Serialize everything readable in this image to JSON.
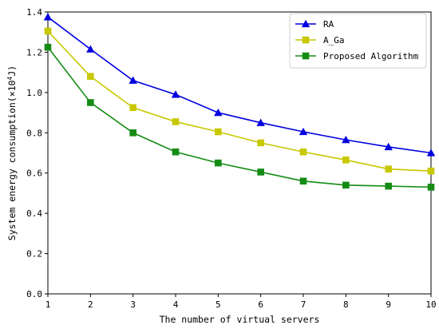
{
  "chart_data": {
    "type": "line",
    "x": [
      1,
      2,
      3,
      4,
      5,
      6,
      7,
      8,
      9,
      10
    ],
    "xlabel": "The number of virtual servers",
    "ylabel_prefix": "System energy consumption(×10",
    "ylabel_exp": "4",
    "ylabel_suffix": "J)",
    "xlim": [
      1,
      10
    ],
    "ylim": [
      0,
      1.4
    ],
    "x_ticks": [
      1,
      2,
      3,
      4,
      5,
      6,
      7,
      8,
      9,
      10
    ],
    "y_ticks": [
      0.0,
      0.2,
      0.4,
      0.6,
      0.8,
      1.0,
      1.2,
      1.4
    ],
    "grid": false,
    "legend_position": "top-right",
    "series": [
      {
        "name": "RA",
        "color": "#0000e0",
        "marker": "triangle",
        "values": [
          1.375,
          1.215,
          1.06,
          0.99,
          0.9,
          0.85,
          0.805,
          0.765,
          0.73,
          0.7
        ]
      },
      {
        "name": "A_Ga",
        "color": "#c8c800",
        "marker": "square",
        "values": [
          1.305,
          1.08,
          0.925,
          0.855,
          0.805,
          0.75,
          0.705,
          0.665,
          0.62,
          0.61
        ]
      },
      {
        "name": "Proposed Algorithm",
        "color": "#148c14",
        "marker": "square",
        "values": [
          1.225,
          0.95,
          0.8,
          0.705,
          0.65,
          0.605,
          0.56,
          0.54,
          0.535,
          0.53
        ]
      }
    ]
  }
}
